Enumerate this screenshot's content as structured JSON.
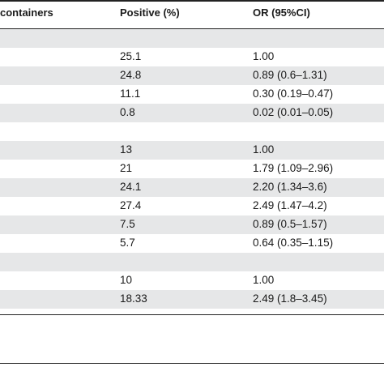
{
  "table": {
    "headers": {
      "col1": "containers",
      "col2": "Positive (%)",
      "col3": "OR (95%CI)"
    },
    "rows": [
      {
        "shade": true,
        "positive": "",
        "or": ""
      },
      {
        "shade": false,
        "positive": "25.1",
        "or": "1.00"
      },
      {
        "shade": true,
        "positive": "24.8",
        "or": "0.89 (0.6–1.31)"
      },
      {
        "shade": false,
        "positive": "11.1",
        "or": "0.30 (0.19–0.47)"
      },
      {
        "shade": true,
        "positive": "0.8",
        "or": "0.02 (0.01–0.05)"
      },
      {
        "shade": false,
        "positive": "",
        "or": ""
      },
      {
        "shade": true,
        "positive": "13",
        "or": "1.00"
      },
      {
        "shade": false,
        "positive": "21",
        "or": "1.79 (1.09–2.96)"
      },
      {
        "shade": true,
        "positive": "24.1",
        "or": "2.20 (1.34–3.6)"
      },
      {
        "shade": false,
        "positive": "27.4",
        "or": "2.49 (1.47–4.2)"
      },
      {
        "shade": true,
        "positive": "7.5",
        "or": "0.89 (0.5–1.57)"
      },
      {
        "shade": false,
        "positive": "5.7",
        "or": "0.64 (0.35–1.15)"
      },
      {
        "shade": true,
        "positive": "",
        "or": ""
      },
      {
        "shade": false,
        "positive": "10",
        "or": "1.00"
      },
      {
        "shade": true,
        "positive": "18.33",
        "or": "2.49 (1.8–3.45)"
      }
    ]
  }
}
